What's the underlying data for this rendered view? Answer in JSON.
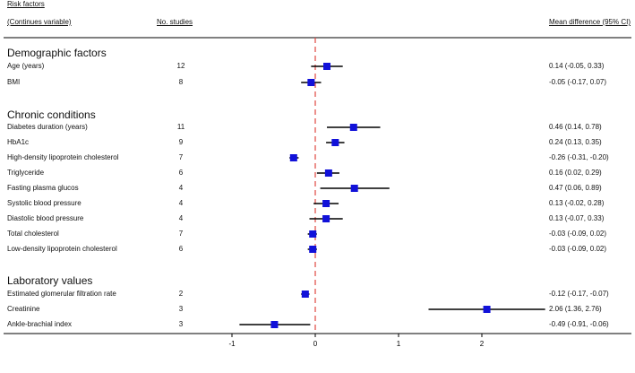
{
  "header": {
    "risk_factors": "Risk factors",
    "continues_variable": "(Continues variable)",
    "no_studies": "No. studies",
    "mean_diff": "Mean difference (95% CI)"
  },
  "colors": {
    "marker": "#1111d9",
    "ref_line": "#e0473f",
    "ci_line": "#000000"
  },
  "chart_data": {
    "type": "forest",
    "xlabel": "",
    "x_ticks": [
      "-1",
      "0",
      "1",
      "2"
    ],
    "xlim": [
      -1.1,
      2.9
    ],
    "reference_line": 0,
    "sections": [
      {
        "title": "Demographic factors",
        "rows": [
          {
            "label": "Age (years)",
            "n": "12",
            "ci_text": "0.14 (-0.05, 0.33)",
            "est": 0.14,
            "lo": -0.05,
            "hi": 0.33
          },
          {
            "label": "BMI",
            "n": "8",
            "ci_text": "-0.05 (-0.17, 0.07)",
            "est": -0.05,
            "lo": -0.17,
            "hi": 0.07
          }
        ]
      },
      {
        "title": "Chronic conditions",
        "rows": [
          {
            "label": "Diabetes duration  (years)",
            "n": "11",
            "ci_text": "0.46 (0.14, 0.78)",
            "est": 0.46,
            "lo": 0.14,
            "hi": 0.78
          },
          {
            "label": "HbA1c",
            "n": "9",
            "ci_text": "0.24 (0.13, 0.35)",
            "est": 0.24,
            "lo": 0.13,
            "hi": 0.35
          },
          {
            "label": "High-density lipoprotein cholesterol",
            "n": "7",
            "ci_text": "-0.26 (-0.31, -0.20)",
            "est": -0.26,
            "lo": -0.31,
            "hi": -0.2
          },
          {
            "label": "Triglyceride",
            "n": "6",
            "ci_text": "0.16 (0.02, 0.29)",
            "est": 0.16,
            "lo": 0.02,
            "hi": 0.29
          },
          {
            "label": "Fasting plasma glucos",
            "n": "4",
            "ci_text": "0.47 (0.06, 0.89)",
            "est": 0.47,
            "lo": 0.06,
            "hi": 0.89
          },
          {
            "label": "Systolic blood pressure",
            "n": "4",
            "ci_text": "0.13 (-0.02, 0.28)",
            "est": 0.13,
            "lo": -0.02,
            "hi": 0.28
          },
          {
            "label": "Diastolic blood pressure",
            "n": "4",
            "ci_text": "0.13 (-0.07, 0.33)",
            "est": 0.13,
            "lo": -0.07,
            "hi": 0.33
          },
          {
            "label": "Total cholesterol",
            "n": "7",
            "ci_text": "-0.03 (-0.09, 0.02)",
            "est": -0.03,
            "lo": -0.09,
            "hi": 0.02
          },
          {
            "label": "Low-density lipoprotein cholesterol",
            "n": "6",
            "ci_text": "-0.03 (-0.09, 0.02)",
            "est": -0.03,
            "lo": -0.09,
            "hi": 0.02
          }
        ]
      },
      {
        "title": "Laboratory values",
        "rows": [
          {
            "label": "Estimated glomerular filtration rate",
            "n": "2",
            "ci_text": "-0.12 (-0.17, -0.07)",
            "est": -0.12,
            "lo": -0.17,
            "hi": -0.07
          },
          {
            "label": "Creatinine",
            "n": "3",
            "ci_text": "2.06 (1.36, 2.76)",
            "est": 2.06,
            "lo": 1.36,
            "hi": 2.76
          },
          {
            "label": "Ankle-brachial index",
            "n": "3",
            "ci_text": "-0.49 (-0.91, -0.06)",
            "est": -0.49,
            "lo": -0.91,
            "hi": -0.06
          }
        ]
      }
    ]
  }
}
